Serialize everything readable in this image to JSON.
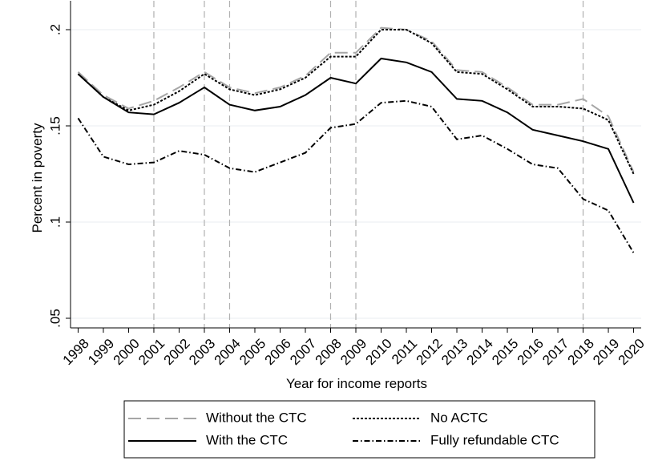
{
  "chart_data": {
    "type": "line",
    "x_label": "Year for income reports",
    "y_label": "Percent in poverty",
    "x": [
      1998,
      1999,
      2000,
      2001,
      2002,
      2003,
      2004,
      2005,
      2006,
      2007,
      2008,
      2009,
      2010,
      2011,
      2012,
      2013,
      2014,
      2015,
      2016,
      2017,
      2018,
      2019,
      2020
    ],
    "xlim": [
      1997.7,
      2020.3
    ],
    "xticks": [
      1998,
      1999,
      2000,
      2001,
      2002,
      2003,
      2004,
      2005,
      2006,
      2007,
      2008,
      2009,
      2010,
      2011,
      2012,
      2013,
      2014,
      2015,
      2016,
      2017,
      2018,
      2019,
      2020
    ],
    "ylim": [
      0.045,
      0.215
    ],
    "yticks": [
      {
        "value": 0.05,
        "label": ".05"
      },
      {
        "value": 0.1,
        "label": ".1"
      },
      {
        "value": 0.15,
        "label": ".15"
      },
      {
        "value": 0.2,
        "label": ".2"
      }
    ],
    "grid": true,
    "reference_lines": [
      2001,
      2003,
      2004,
      2008,
      2009,
      2018
    ],
    "series": [
      {
        "name": "Without the CTC",
        "color": "#a6a6a6",
        "style": "dashed",
        "values": [
          0.178,
          0.166,
          0.159,
          0.163,
          0.17,
          0.178,
          0.17,
          0.167,
          0.17,
          0.176,
          0.188,
          0.188,
          0.201,
          0.2,
          0.194,
          0.179,
          0.178,
          0.17,
          0.161,
          0.161,
          0.164,
          0.155,
          0.126
        ]
      },
      {
        "name": "No ACTC",
        "color": "#000000",
        "style": "dotted",
        "values": [
          0.177,
          0.165,
          0.158,
          0.161,
          0.168,
          0.177,
          0.169,
          0.166,
          0.169,
          0.175,
          0.186,
          0.186,
          0.2,
          0.2,
          0.193,
          0.178,
          0.177,
          0.169,
          0.16,
          0.16,
          0.159,
          0.153,
          0.125
        ]
      },
      {
        "name": "With the CTC",
        "color": "#000000",
        "style": "solid",
        "values": [
          0.177,
          0.165,
          0.157,
          0.156,
          0.162,
          0.17,
          0.161,
          0.158,
          0.16,
          0.166,
          0.175,
          0.172,
          0.185,
          0.183,
          0.178,
          0.164,
          0.163,
          0.157,
          0.148,
          0.145,
          0.142,
          0.138,
          0.11
        ]
      },
      {
        "name": "Fully refundable CTC",
        "color": "#000000",
        "style": "dashdot",
        "values": [
          0.154,
          0.134,
          0.13,
          0.131,
          0.137,
          0.135,
          0.128,
          0.126,
          0.131,
          0.136,
          0.149,
          0.151,
          0.162,
          0.163,
          0.16,
          0.143,
          0.145,
          0.138,
          0.13,
          0.128,
          0.112,
          0.106,
          0.084
        ]
      }
    ]
  }
}
